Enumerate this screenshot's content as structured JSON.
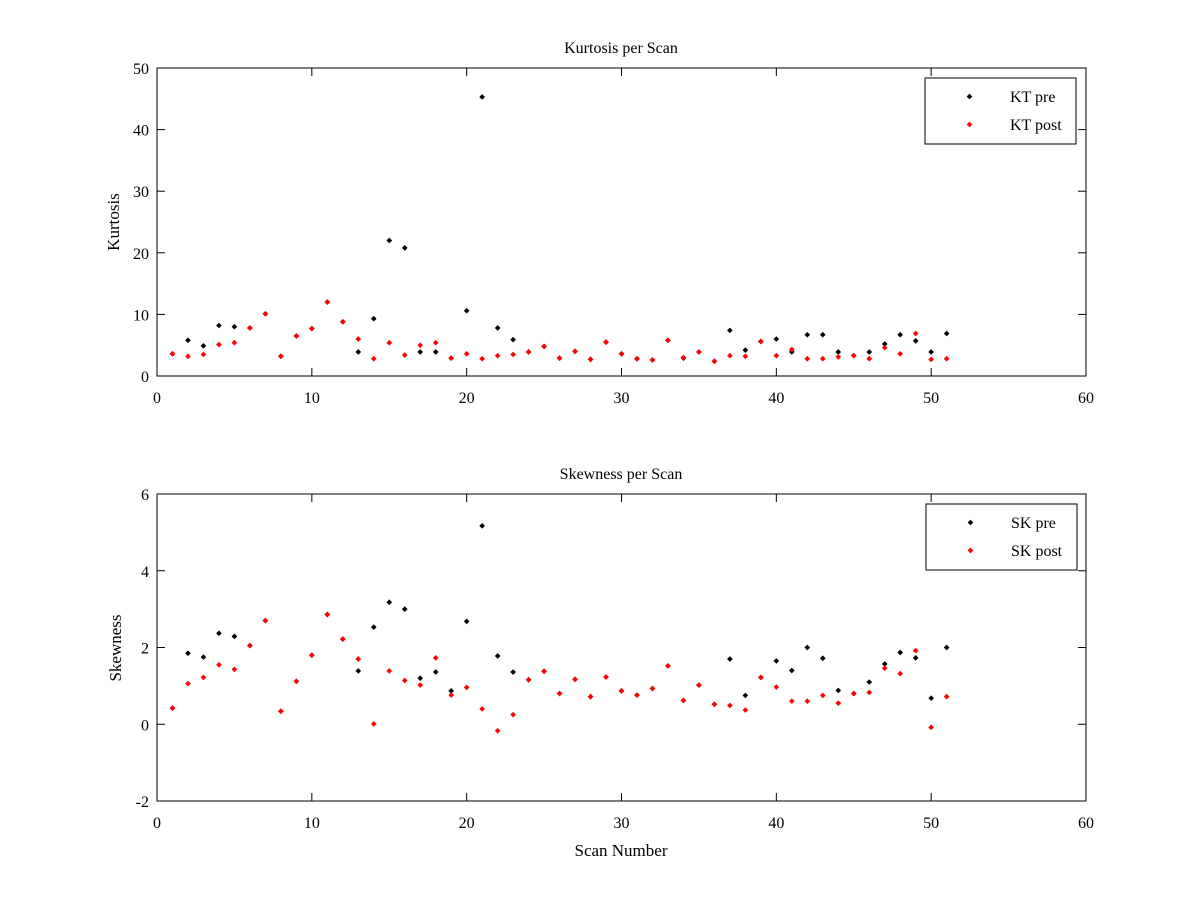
{
  "chart_data": [
    {
      "type": "scatter",
      "title": "Kurtosis per Scan",
      "xlabel": "",
      "ylabel": "Kurtosis",
      "xlim": [
        0,
        60
      ],
      "ylim": [
        0,
        50
      ],
      "xticks": [
        0,
        10,
        20,
        30,
        40,
        50,
        60
      ],
      "yticks": [
        0,
        10,
        20,
        30,
        40,
        50
      ],
      "grid": false,
      "legend_position": "top-right",
      "series": [
        {
          "name": "KT pre",
          "color": "#000000",
          "x": [
            1,
            2,
            3,
            4,
            5,
            6,
            7,
            8,
            9,
            10,
            11,
            12,
            13,
            14,
            15,
            16,
            17,
            18,
            19,
            20,
            21,
            22,
            23,
            24,
            25,
            26,
            27,
            28,
            29,
            30,
            31,
            32,
            33,
            34,
            35,
            36,
            37,
            38,
            39,
            40,
            41,
            42,
            43,
            44,
            45,
            46,
            47,
            48,
            49,
            50,
            51
          ],
          "y": [
            3.6,
            5.8,
            4.9,
            8.2,
            8.0,
            7.8,
            10.1,
            3.2,
            6.5,
            7.7,
            12.0,
            8.8,
            3.9,
            9.3,
            22.0,
            20.8,
            3.9,
            3.9,
            2.9,
            10.6,
            45.3,
            7.8,
            5.9,
            3.9,
            4.8,
            2.9,
            4.0,
            2.7,
            5.5,
            3.6,
            2.8,
            2.6,
            5.8,
            2.9,
            3.9,
            2.4,
            7.4,
            4.2,
            5.6,
            6.0,
            3.9,
            6.7,
            6.7,
            3.9,
            3.3,
            3.9,
            5.2,
            6.7,
            5.7,
            3.9,
            6.9
          ]
        },
        {
          "name": "KT post",
          "color": "#ff0000",
          "x": [
            1,
            2,
            3,
            4,
            5,
            6,
            7,
            8,
            9,
            10,
            11,
            12,
            13,
            14,
            15,
            16,
            17,
            18,
            19,
            20,
            21,
            22,
            23,
            24,
            25,
            26,
            27,
            28,
            29,
            30,
            31,
            32,
            33,
            34,
            35,
            36,
            37,
            38,
            39,
            40,
            41,
            42,
            43,
            44,
            45,
            46,
            47,
            48,
            49,
            50,
            51
          ],
          "y": [
            3.6,
            3.2,
            3.5,
            5.1,
            5.4,
            7.8,
            10.1,
            3.2,
            6.5,
            7.7,
            12.0,
            8.8,
            6.0,
            2.8,
            5.4,
            3.4,
            5.0,
            5.4,
            2.9,
            3.6,
            2.8,
            3.3,
            3.5,
            3.9,
            4.8,
            2.9,
            4.0,
            2.7,
            5.5,
            3.6,
            2.8,
            2.6,
            5.8,
            3.0,
            3.9,
            2.4,
            3.3,
            3.2,
            5.6,
            3.3,
            4.3,
            2.8,
            2.8,
            3.1,
            3.3,
            2.8,
            4.6,
            3.6,
            6.9,
            2.7,
            2.8
          ]
        }
      ]
    },
    {
      "type": "scatter",
      "title": "Skewness per Scan",
      "xlabel": "Scan Number",
      "ylabel": "Skewness",
      "xlim": [
        0,
        60
      ],
      "ylim": [
        -2,
        6
      ],
      "xticks": [
        0,
        10,
        20,
        30,
        40,
        50,
        60
      ],
      "yticks": [
        -2,
        0,
        2,
        4,
        6
      ],
      "grid": false,
      "legend_position": "top-right",
      "series": [
        {
          "name": "SK pre",
          "color": "#000000",
          "x": [
            1,
            2,
            3,
            4,
            5,
            6,
            7,
            8,
            9,
            10,
            11,
            12,
            13,
            14,
            15,
            16,
            17,
            18,
            19,
            20,
            21,
            22,
            23,
            24,
            25,
            26,
            27,
            28,
            29,
            30,
            31,
            32,
            33,
            34,
            35,
            36,
            37,
            38,
            39,
            40,
            41,
            42,
            43,
            44,
            45,
            46,
            47,
            48,
            49,
            50,
            51
          ],
          "y": [
            0.42,
            1.85,
            1.75,
            2.37,
            2.29,
            2.05,
            2.7,
            0.34,
            1.12,
            1.8,
            2.86,
            2.22,
            1.39,
            2.53,
            3.18,
            3.0,
            1.2,
            1.36,
            0.87,
            2.68,
            5.17,
            1.78,
            1.36,
            1.16,
            1.38,
            0.8,
            1.17,
            0.72,
            1.23,
            0.87,
            0.76,
            0.93,
            1.52,
            0.62,
            1.02,
            0.52,
            1.7,
            0.75,
            1.22,
            1.65,
            1.4,
            2.0,
            1.72,
            0.88,
            0.8,
            1.1,
            1.57,
            1.87,
            1.73,
            0.68,
            2.0
          ]
        },
        {
          "name": "SK post",
          "color": "#ff0000",
          "x": [
            1,
            2,
            3,
            4,
            5,
            6,
            7,
            8,
            9,
            10,
            11,
            12,
            13,
            14,
            15,
            16,
            17,
            18,
            19,
            20,
            21,
            22,
            23,
            24,
            25,
            26,
            27,
            28,
            29,
            30,
            31,
            32,
            33,
            34,
            35,
            36,
            37,
            38,
            39,
            40,
            41,
            42,
            43,
            44,
            45,
            46,
            47,
            48,
            49,
            50,
            51
          ],
          "y": [
            0.42,
            1.06,
            1.22,
            1.55,
            1.43,
            2.05,
            2.7,
            0.34,
            1.12,
            1.8,
            2.86,
            2.22,
            1.7,
            0.01,
            1.39,
            1.14,
            1.02,
            1.73,
            0.76,
            0.96,
            0.4,
            -0.17,
            0.25,
            1.16,
            1.38,
            0.8,
            1.17,
            0.72,
            1.23,
            0.87,
            0.76,
            0.93,
            1.52,
            0.62,
            1.02,
            0.52,
            0.49,
            0.37,
            1.22,
            0.97,
            0.6,
            0.6,
            0.75,
            0.55,
            0.8,
            0.83,
            1.46,
            1.32,
            1.92,
            -0.08,
            0.72
          ]
        }
      ]
    }
  ]
}
